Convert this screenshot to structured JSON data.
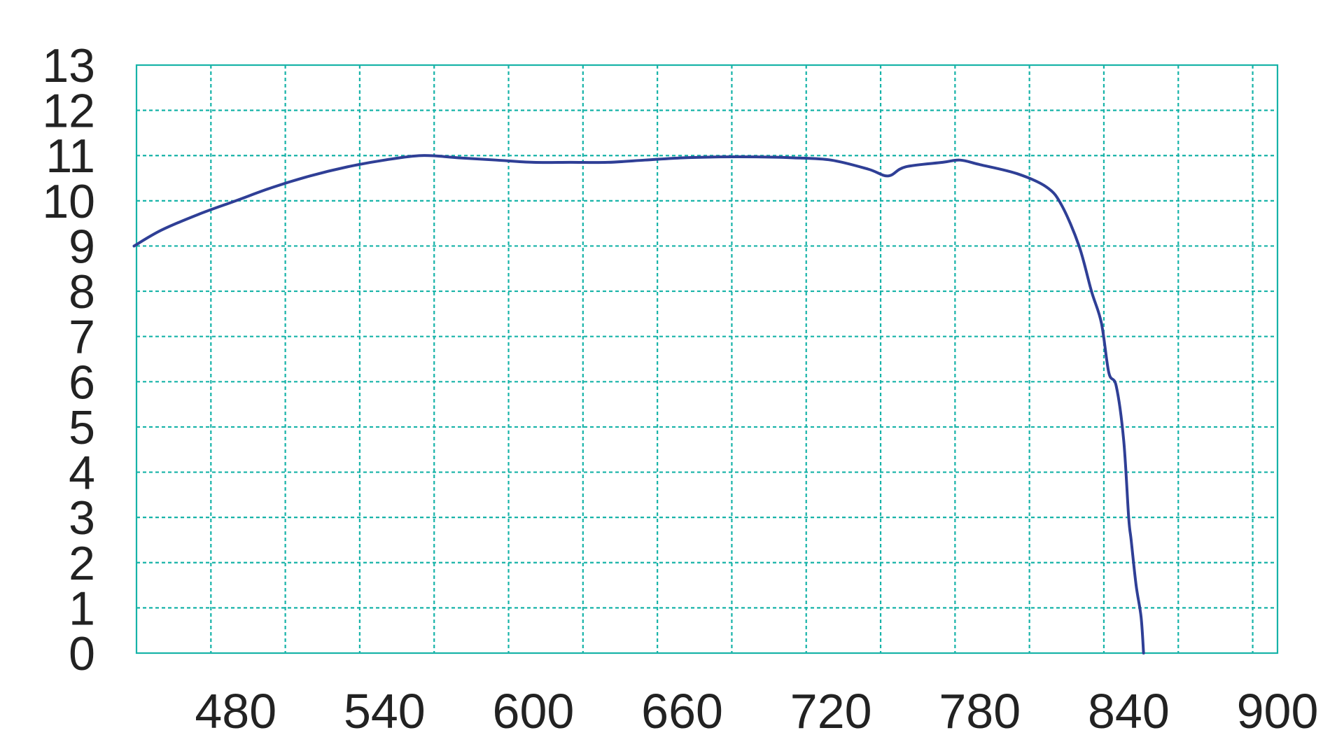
{
  "chart_data": {
    "type": "line",
    "title": "",
    "xlabel": "",
    "ylabel": "",
    "xlim": [
      440,
      900
    ],
    "ylim": [
      0,
      13
    ],
    "x_ticks": [
      480,
      540,
      600,
      660,
      720,
      780,
      840,
      900
    ],
    "y_ticks": [
      0,
      1,
      2,
      3,
      4,
      5,
      6,
      7,
      8,
      9,
      10,
      11,
      12,
      13
    ],
    "grid": true,
    "colors": {
      "grid": "#17b3a8",
      "line": "#2f3f96",
      "text": "#222222"
    },
    "series": [
      {
        "x": [
          439,
          450,
          465,
          480,
          495,
          510,
          525,
          540,
          555,
          570,
          585,
          600,
          615,
          630,
          645,
          660,
          675,
          690,
          705,
          720,
          735,
          743,
          750,
          765,
          772,
          780,
          795,
          807,
          813,
          820,
          825,
          829,
          832,
          835,
          838,
          840,
          841,
          843,
          845,
          846
        ],
        "y": [
          9.0,
          9.35,
          9.7,
          10.0,
          10.3,
          10.55,
          10.75,
          10.9,
          11.0,
          10.95,
          10.9,
          10.85,
          10.85,
          10.85,
          10.9,
          10.95,
          10.97,
          10.97,
          10.95,
          10.9,
          10.7,
          10.55,
          10.75,
          10.85,
          10.9,
          10.8,
          10.6,
          10.3,
          9.9,
          9.0,
          8.0,
          7.3,
          6.2,
          5.9,
          4.7,
          3.0,
          2.5,
          1.5,
          0.8,
          0.0
        ]
      }
    ]
  }
}
